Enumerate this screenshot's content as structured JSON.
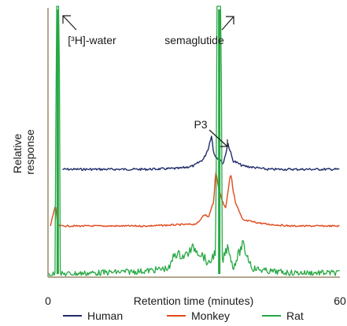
{
  "chart_data": {
    "type": "line",
    "title": "",
    "xlabel": "Retention time (minutes)",
    "ylabel": "Relative response",
    "xlim": [
      0,
      60
    ],
    "x_ticks": [
      0,
      60
    ],
    "grid": false,
    "legend": {
      "placement": "bottom"
    },
    "colors": {
      "Human": "#1f2d6b",
      "Monkey": "#e04a1c",
      "Rat": "#27a844",
      "axis": "#9a8a6a"
    },
    "annotations": [
      {
        "text": "[³H]-water",
        "x": 1.5
      },
      {
        "text": "semaglutide",
        "x": 36
      },
      {
        "text": "P3",
        "x": 34
      }
    ],
    "series": [
      {
        "name": "Human",
        "baseline": 0.0,
        "points": [
          [
            3,
            0.0
          ],
          [
            10,
            0.0
          ],
          [
            20,
            0.0
          ],
          [
            27,
            0.01
          ],
          [
            30,
            0.04
          ],
          [
            31,
            0.08
          ],
          [
            32,
            0.12
          ],
          [
            33,
            0.25
          ],
          [
            33.6,
            0.4
          ],
          [
            34,
            0.2
          ],
          [
            34.5,
            0.15
          ],
          [
            35.5,
            0.1
          ],
          [
            36,
            0.06
          ],
          [
            37,
            0.3
          ],
          [
            38,
            0.1
          ],
          [
            40,
            0.04
          ],
          [
            45,
            0.0
          ],
          [
            50,
            0.0
          ],
          [
            60,
            0.0
          ]
        ]
      },
      {
        "name": "Monkey",
        "baseline": 0.0,
        "points": [
          [
            0.5,
            0.0
          ],
          [
            1.5,
            0.35
          ],
          [
            2,
            0.0
          ],
          [
            10,
            0.0
          ],
          [
            20,
            0.0
          ],
          [
            30,
            0.03
          ],
          [
            31,
            0.06
          ],
          [
            32,
            0.2
          ],
          [
            33,
            0.15
          ],
          [
            34,
            0.4
          ],
          [
            34.5,
            0.9
          ],
          [
            35.5,
            0.5
          ],
          [
            36.5,
            0.3
          ],
          [
            37.5,
            0.9
          ],
          [
            38.5,
            0.4
          ],
          [
            40,
            0.1
          ],
          [
            45,
            0.03
          ],
          [
            50,
            0.0
          ],
          [
            60,
            0.0
          ]
        ]
      },
      {
        "name": "Rat",
        "baseline": 0.0,
        "points": [
          [
            0,
            0.0
          ],
          [
            1.5,
            0.0
          ],
          [
            2,
            12.0
          ],
          [
            2.5,
            0.0
          ],
          [
            10,
            0.02
          ],
          [
            20,
            0.05
          ],
          [
            25,
            0.1
          ],
          [
            26,
            0.35
          ],
          [
            28,
            0.3
          ],
          [
            30,
            0.45
          ],
          [
            32,
            0.3
          ],
          [
            33,
            0.15
          ],
          [
            34.5,
            0.4
          ],
          [
            35.2,
            12.0
          ],
          [
            35.8,
            0.2
          ],
          [
            37,
            0.5
          ],
          [
            38,
            0.1
          ],
          [
            40,
            0.5
          ],
          [
            42,
            0.1
          ],
          [
            45,
            0.05
          ],
          [
            50,
            0.02
          ],
          [
            55,
            0.02
          ],
          [
            60,
            0.02
          ]
        ]
      }
    ]
  }
}
